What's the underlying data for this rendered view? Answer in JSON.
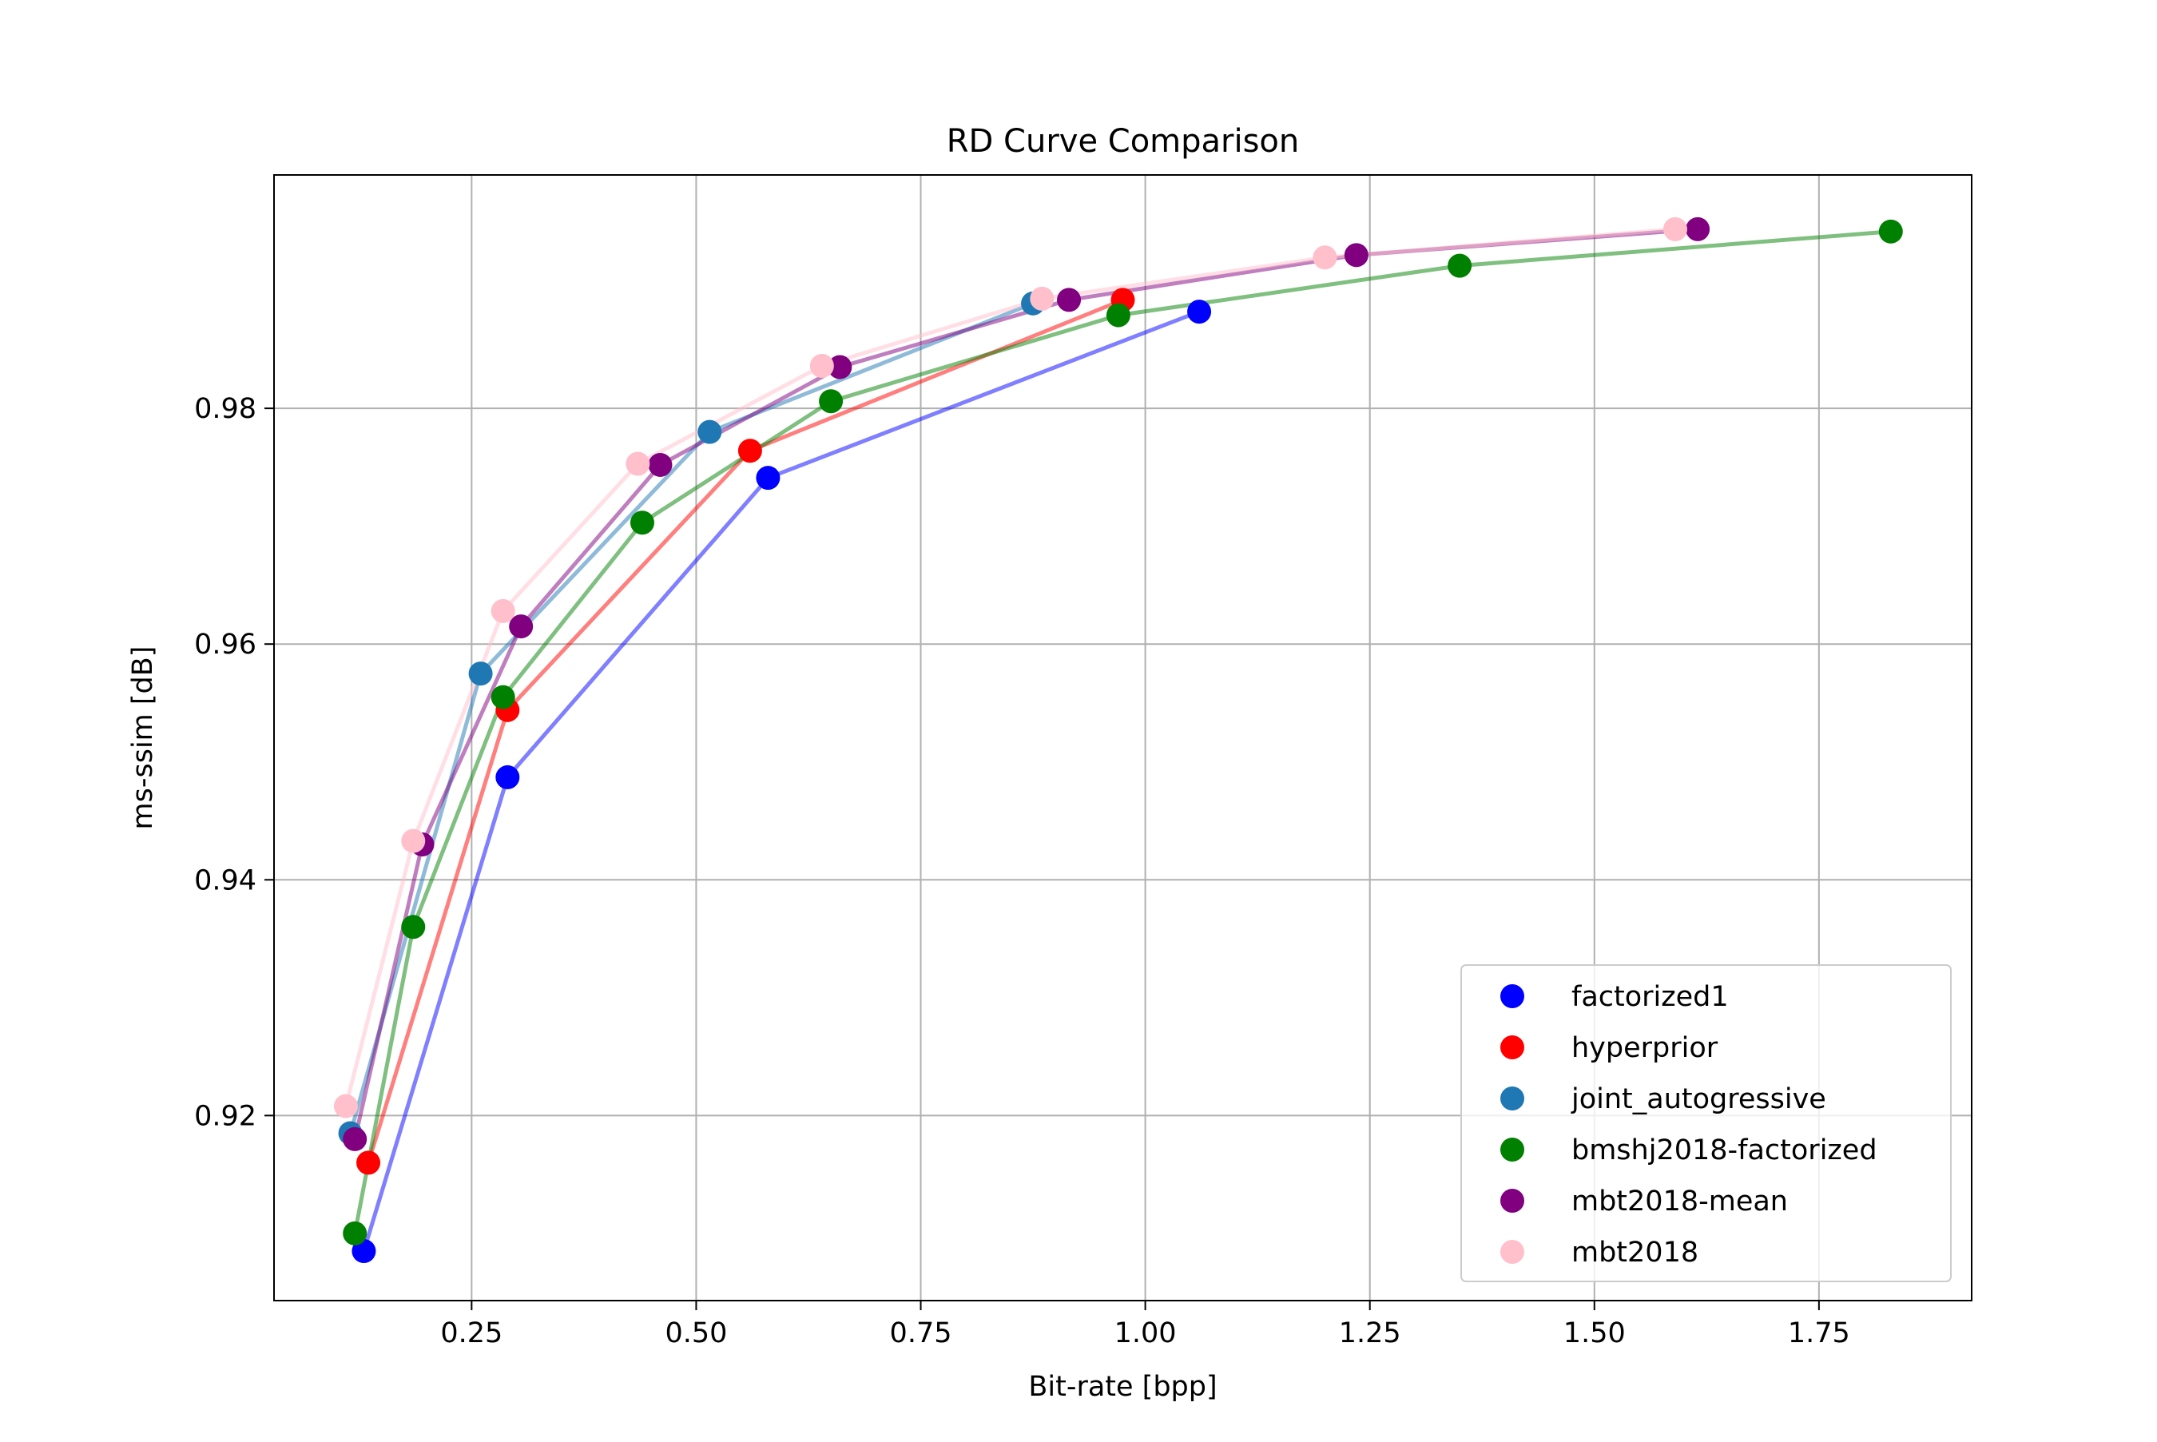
{
  "chart_data": {
    "type": "scatter",
    "title": "RD Curve Comparison",
    "xlabel": "Bit-rate [bpp]",
    "ylabel": "ms-ssim [dB]",
    "xlim": [
      0.03,
      1.92
    ],
    "ylim": [
      0.9043,
      0.9998
    ],
    "xticks": [
      0.25,
      0.5,
      0.75,
      1.0,
      1.25,
      1.5,
      1.75
    ],
    "xtick_labels": [
      "0.25",
      "0.50",
      "0.75",
      "1.00",
      "1.25",
      "1.50",
      "1.75"
    ],
    "yticks": [
      0.92,
      0.94,
      0.96,
      0.98
    ],
    "ytick_labels": [
      "0.92",
      "0.94",
      "0.96",
      "0.98"
    ],
    "grid": true,
    "legend_position": "lower-right",
    "series": [
      {
        "name": "factorized1",
        "color": "#0000ff",
        "x": [
          0.13,
          0.29,
          0.58,
          1.06
        ],
        "y": [
          0.9085,
          0.9487,
          0.9741,
          0.9882
        ]
      },
      {
        "name": "hyperprior",
        "color": "#ff0000",
        "x": [
          0.135,
          0.29,
          0.56,
          0.975
        ],
        "y": [
          0.916,
          0.9544,
          0.9764,
          0.9892
        ]
      },
      {
        "name": "joint_autogressive",
        "color": "#1f77b4",
        "x": [
          0.115,
          0.26,
          0.515,
          0.875
        ],
        "y": [
          0.9185,
          0.9575,
          0.978,
          0.9889
        ]
      },
      {
        "name": "bmshj2018-factorized",
        "color": "#008000",
        "x": [
          0.12,
          0.185,
          0.285,
          0.44,
          0.65,
          0.97,
          1.35,
          1.83
        ],
        "y": [
          0.91,
          0.936,
          0.9555,
          0.9703,
          0.9806,
          0.9879,
          0.9921,
          0.995
        ]
      },
      {
        "name": "mbt2018-mean",
        "color": "#800080",
        "x": [
          0.12,
          0.195,
          0.305,
          0.46,
          0.66,
          0.915,
          1.235,
          1.615
        ],
        "y": [
          0.918,
          0.943,
          0.9615,
          0.9752,
          0.9835,
          0.9892,
          0.993,
          0.9952
        ]
      },
      {
        "name": "mbt2018",
        "color": "#ffc0cb",
        "x": [
          0.11,
          0.185,
          0.285,
          0.435,
          0.64,
          0.885,
          1.2,
          1.59
        ],
        "y": [
          0.9208,
          0.9433,
          0.9628,
          0.9753,
          0.9836,
          0.9893,
          0.9928,
          0.9952
        ]
      }
    ]
  }
}
